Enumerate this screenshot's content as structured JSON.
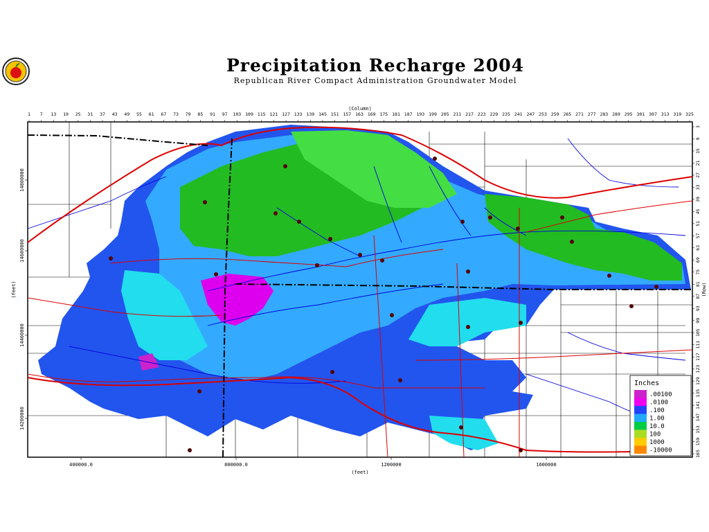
{
  "title": "Precipitation Recharge 2004",
  "subtitle": "Republican River Compact Administration Groundwater Model",
  "axes": {
    "top_label": "(Column)",
    "right_label": "(Row)",
    "bottom_label": "(feet)",
    "left_label": "(feet)",
    "column_ticks": [
      "1",
      "7",
      "13",
      "19",
      "25",
      "31",
      "37",
      "43",
      "49",
      "55",
      "61",
      "67",
      "73",
      "79",
      "85",
      "91",
      "97",
      "103",
      "109",
      "115",
      "121",
      "127",
      "133",
      "139",
      "145",
      "151",
      "157",
      "163",
      "169",
      "175",
      "181",
      "187",
      "193",
      "199",
      "205",
      "211",
      "217",
      "223",
      "229",
      "235",
      "241",
      "247",
      "253",
      "259",
      "265",
      "271",
      "277",
      "283",
      "289",
      "295",
      "301",
      "307",
      "313",
      "319",
      "325"
    ],
    "row_ticks": [
      "3",
      "9",
      "15",
      "21",
      "27",
      "33",
      "39",
      "45",
      "51",
      "57",
      "63",
      "69",
      "75",
      "81",
      "87",
      "93",
      "99",
      "105",
      "111",
      "117",
      "123",
      "129",
      "135",
      "141",
      "147",
      "153",
      "159",
      "165"
    ],
    "x_ticks": [
      "400000.0",
      "800000.0",
      "1200000",
      "1600000"
    ],
    "y_ticks": [
      "14800000",
      "14600000",
      "14400000",
      "14200000"
    ]
  },
  "legend": {
    "title": "Inches",
    "items": [
      {
        "label": ".00100",
        "color": "#cc22cc"
      },
      {
        "label": ".0100",
        "color": "#ee00ee"
      },
      {
        "label": ".100",
        "color": "#2244ff"
      },
      {
        "label": "1.00",
        "color": "#22aaff"
      },
      {
        "label": "10.0",
        "color": "#00cc44"
      },
      {
        "label": "100",
        "color": "#aadd22"
      },
      {
        "label": "1000",
        "color": "#ffcc00"
      },
      {
        "label": "-10000",
        "color": "#ff8800"
      }
    ]
  },
  "colors": {
    "low": "#2255ee",
    "mid": "#33aaff",
    "cyan": "#22ddee",
    "high": "#22bb22",
    "lime": "#44dd44",
    "magenta": "#dd00ee",
    "roads": "#dd0000",
    "rivers": "#0000dd",
    "boundaries": "#000000"
  }
}
